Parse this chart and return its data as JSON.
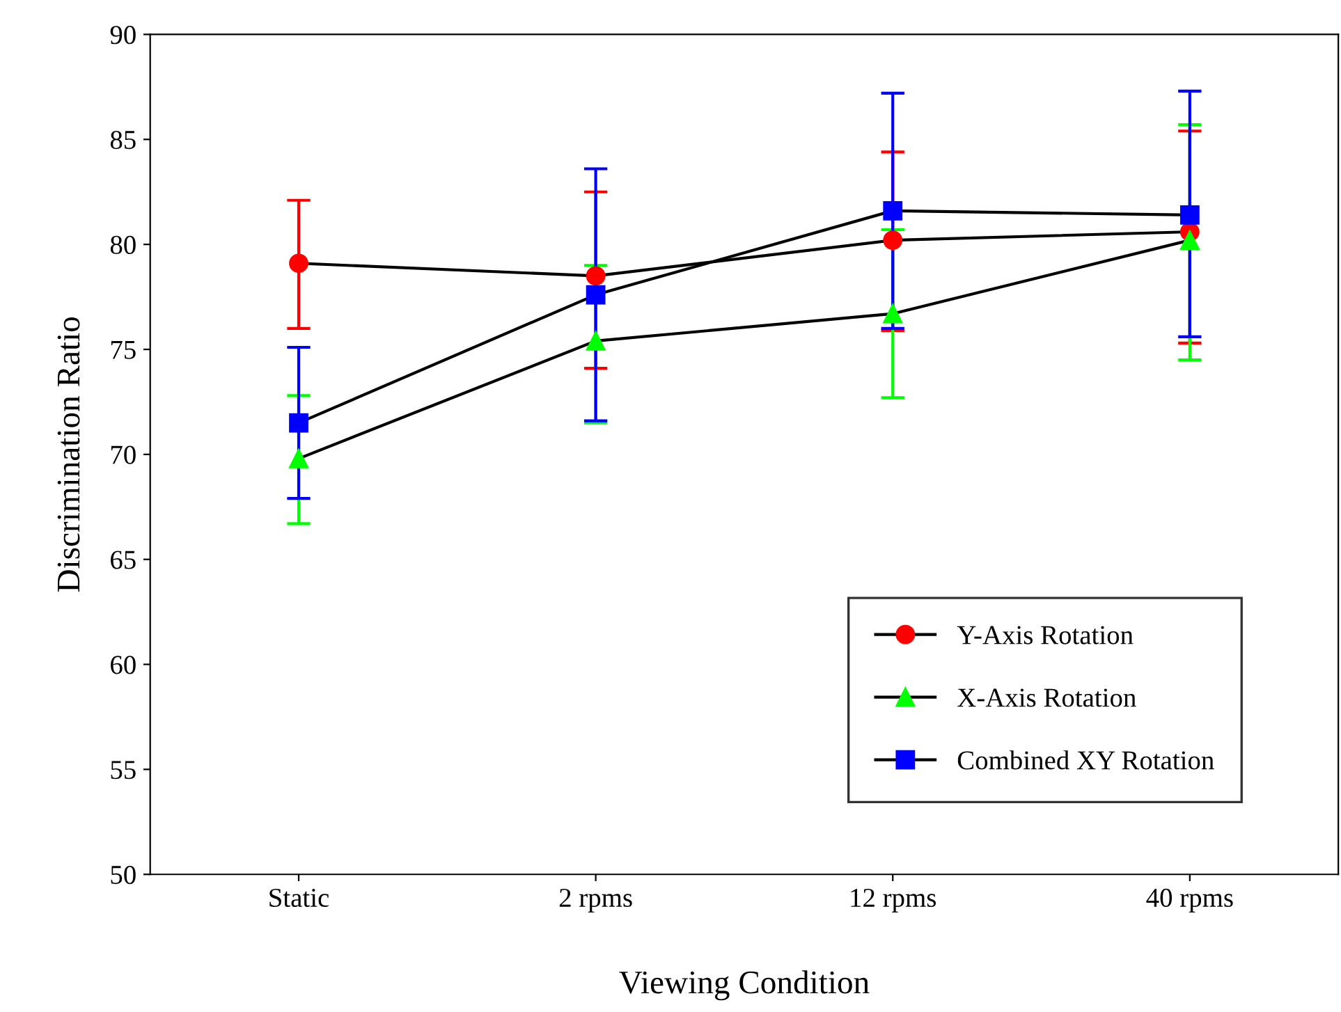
{
  "chart_data": {
    "type": "line",
    "xlabel": "Viewing Condition",
    "ylabel": "Discrimination Ratio",
    "categories": [
      "Static",
      "2 rpms",
      "12 rpms",
      "40 rpms"
    ],
    "series": [
      {
        "name": "Y-Axis Rotation",
        "color": "#ff0000",
        "marker": "circle",
        "values": [
          79.1,
          78.5,
          80.2,
          80.6
        ],
        "errors": [
          [
            76.0,
            82.1
          ],
          [
            74.1,
            82.5
          ],
          [
            75.9,
            84.4
          ],
          [
            75.3,
            85.4
          ]
        ]
      },
      {
        "name": "X-Axis Rotation",
        "color": "#00ff00",
        "marker": "triangle",
        "values": [
          69.8,
          75.4,
          76.7,
          80.2
        ],
        "errors": [
          [
            66.7,
            72.8
          ],
          [
            71.5,
            79.0
          ],
          [
            72.7,
            80.7
          ],
          [
            74.5,
            85.7
          ]
        ]
      },
      {
        "name": "Combined XY Rotation",
        "color": "#0000ff",
        "marker": "square",
        "values": [
          71.5,
          77.6,
          81.6,
          81.4
        ],
        "errors": [
          [
            67.9,
            75.1
          ],
          [
            71.6,
            83.6
          ],
          [
            76.0,
            87.2
          ],
          [
            75.6,
            87.3
          ]
        ]
      }
    ],
    "ylim": [
      50,
      90
    ],
    "yticks": [
      50,
      55,
      60,
      65,
      70,
      75,
      80,
      85,
      90
    ],
    "grid": false,
    "legend": "bottom right"
  }
}
